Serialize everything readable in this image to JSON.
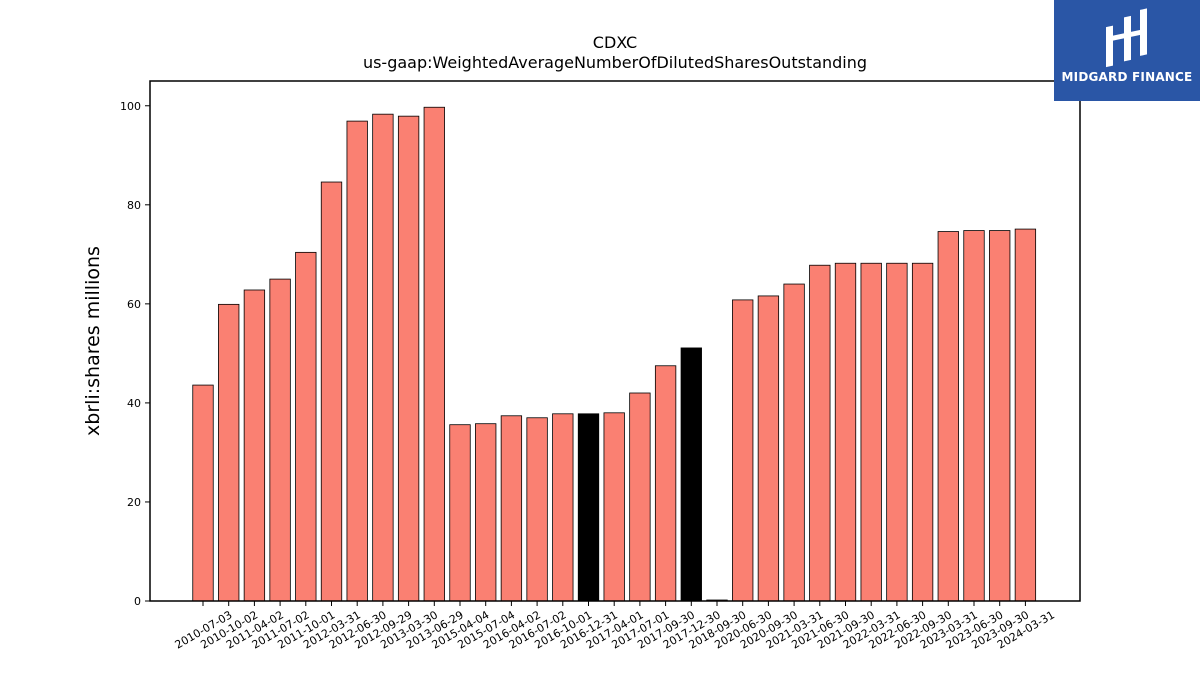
{
  "chart_data": {
    "type": "bar",
    "title": "CDXC",
    "subtitle": "us-gaap:WeightedAverageNumberOfDilutedSharesOutstanding",
    "xlabel": "",
    "ylabel": "xbrli:shares millions",
    "ylim": [
      0,
      105
    ],
    "yticks": [
      0,
      20,
      40,
      60,
      80,
      100
    ],
    "grid": false,
    "colors": {
      "default": "#fa8072",
      "highlight": "#000000",
      "edge": "#000000"
    },
    "categories": [
      "2010-07-03",
      "2010-10-02",
      "2011-04-02",
      "2011-07-02",
      "2011-10-01",
      "2012-03-31",
      "2012-06-30",
      "2012-09-29",
      "2013-03-30",
      "2013-06-29",
      "2015-04-04",
      "2015-07-04",
      "2016-04-02",
      "2016-07-02",
      "2016-10-01",
      "2016-12-31",
      "2017-04-01",
      "2017-07-01",
      "2017-09-30",
      "2017-12-30",
      "2018-09-30",
      "2020-06-30",
      "2020-09-30",
      "2021-03-31",
      "2021-06-30",
      "2021-09-30",
      "2022-03-31",
      "2022-06-30",
      "2022-09-30",
      "2023-03-31",
      "2023-06-30",
      "2023-09-30",
      "2024-03-31"
    ],
    "values": [
      43.6,
      59.9,
      62.8,
      65.0,
      70.4,
      84.6,
      96.9,
      98.3,
      97.9,
      99.7,
      35.6,
      35.8,
      37.4,
      37.0,
      37.8,
      37.8,
      38.0,
      42.0,
      47.5,
      51.1,
      0.2,
      60.8,
      61.6,
      64.0,
      67.8,
      68.2,
      68.2,
      68.2,
      68.2,
      74.6,
      74.8,
      74.8,
      75.1
    ],
    "highlighted": [
      false,
      false,
      false,
      false,
      false,
      false,
      false,
      false,
      false,
      false,
      false,
      false,
      false,
      false,
      false,
      true,
      false,
      false,
      false,
      true,
      false,
      false,
      false,
      false,
      false,
      false,
      false,
      false,
      false,
      false,
      false,
      false,
      false
    ]
  },
  "logo": {
    "text": "MIDGARD FINANCE",
    "bg_color": "#2a56a6",
    "icon": "midgard-logo-icon"
  }
}
